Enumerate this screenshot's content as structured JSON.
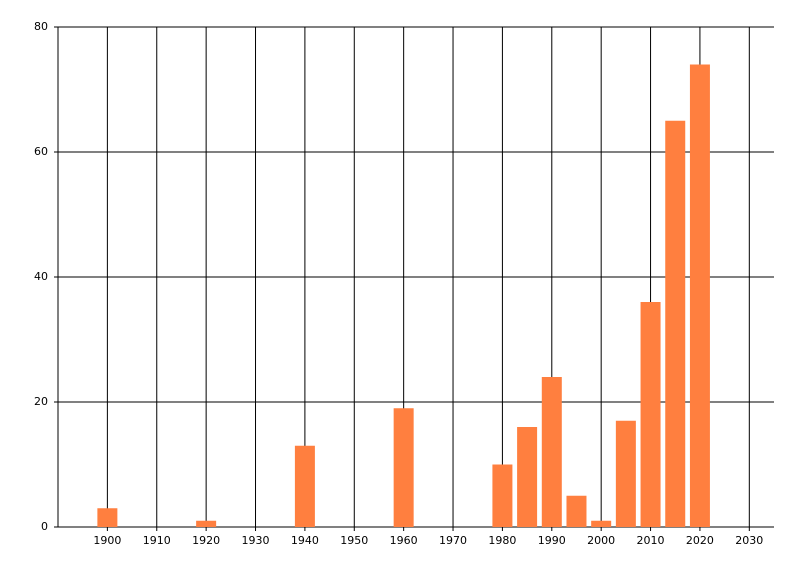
{
  "chart_data": {
    "type": "bar",
    "x": [
      1900,
      1920,
      1940,
      1960,
      1980,
      1985,
      1990,
      1995,
      2000,
      2005,
      2010,
      2015,
      2020
    ],
    "values": [
      3,
      1,
      13,
      19,
      10,
      16,
      24,
      5,
      1,
      17,
      36,
      65,
      74
    ],
    "color": "#ff7f3f",
    "xlim": [
      1890,
      2035
    ],
    "xticks": [
      1900,
      1910,
      1920,
      1930,
      1940,
      1950,
      1960,
      1970,
      1980,
      1990,
      2000,
      2010,
      2020,
      2030
    ],
    "ylim": [
      0,
      80
    ],
    "yticks": [
      0,
      20,
      40,
      60,
      80
    ],
    "grid": true
  }
}
